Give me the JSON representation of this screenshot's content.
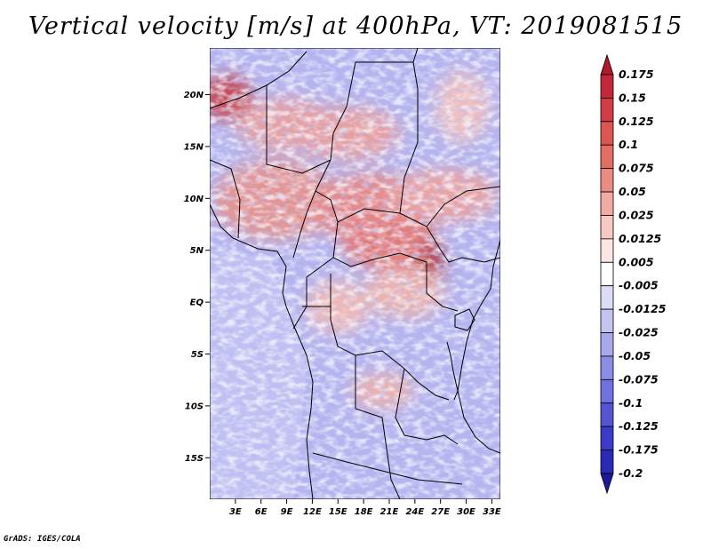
{
  "title": "Vertical velocity [m/s] at 400hPa, VT: 2019081515",
  "credit": "GrADS: IGES/COLA",
  "map": {
    "lat_range": [
      -19,
      24.5
    ],
    "lon_range": [
      0,
      34
    ],
    "lat_ticks": [
      "20N",
      "15N",
      "10N",
      "5N",
      "EQ",
      "5S",
      "10S",
      "15S"
    ],
    "lat_tick_values": [
      20,
      15,
      10,
      5,
      0,
      -5,
      -10,
      -15
    ],
    "lon_ticks": [
      "3E",
      "6E",
      "9E",
      "12E",
      "15E",
      "18E",
      "21E",
      "24E",
      "27E",
      "30E",
      "33E"
    ],
    "lon_tick_values": [
      3,
      6,
      9,
      12,
      15,
      18,
      21,
      24,
      27,
      30,
      33
    ]
  },
  "colorbar": {
    "labels": [
      "0.175",
      "0.15",
      "0.125",
      "0.1",
      "0.075",
      "0.05",
      "0.025",
      "0.0125",
      "0.005",
      "-0.005",
      "-0.0125",
      "-0.025",
      "-0.05",
      "-0.075",
      "-0.1",
      "-0.125",
      "-0.175",
      "-0.2"
    ],
    "colors": [
      "#b2182b",
      "#c3283a",
      "#d03b45",
      "#db5552",
      "#e26f66",
      "#ea8c83",
      "#f2aaa2",
      "#f8c9c3",
      "#fce6e3",
      "#ffffff",
      "#dcdcf7",
      "#c4c4f1",
      "#a8a8ec",
      "#8c8ce6",
      "#7070de",
      "#5555d4",
      "#3b3bc8",
      "#2a2ab6",
      "#1a1a9a"
    ]
  }
}
